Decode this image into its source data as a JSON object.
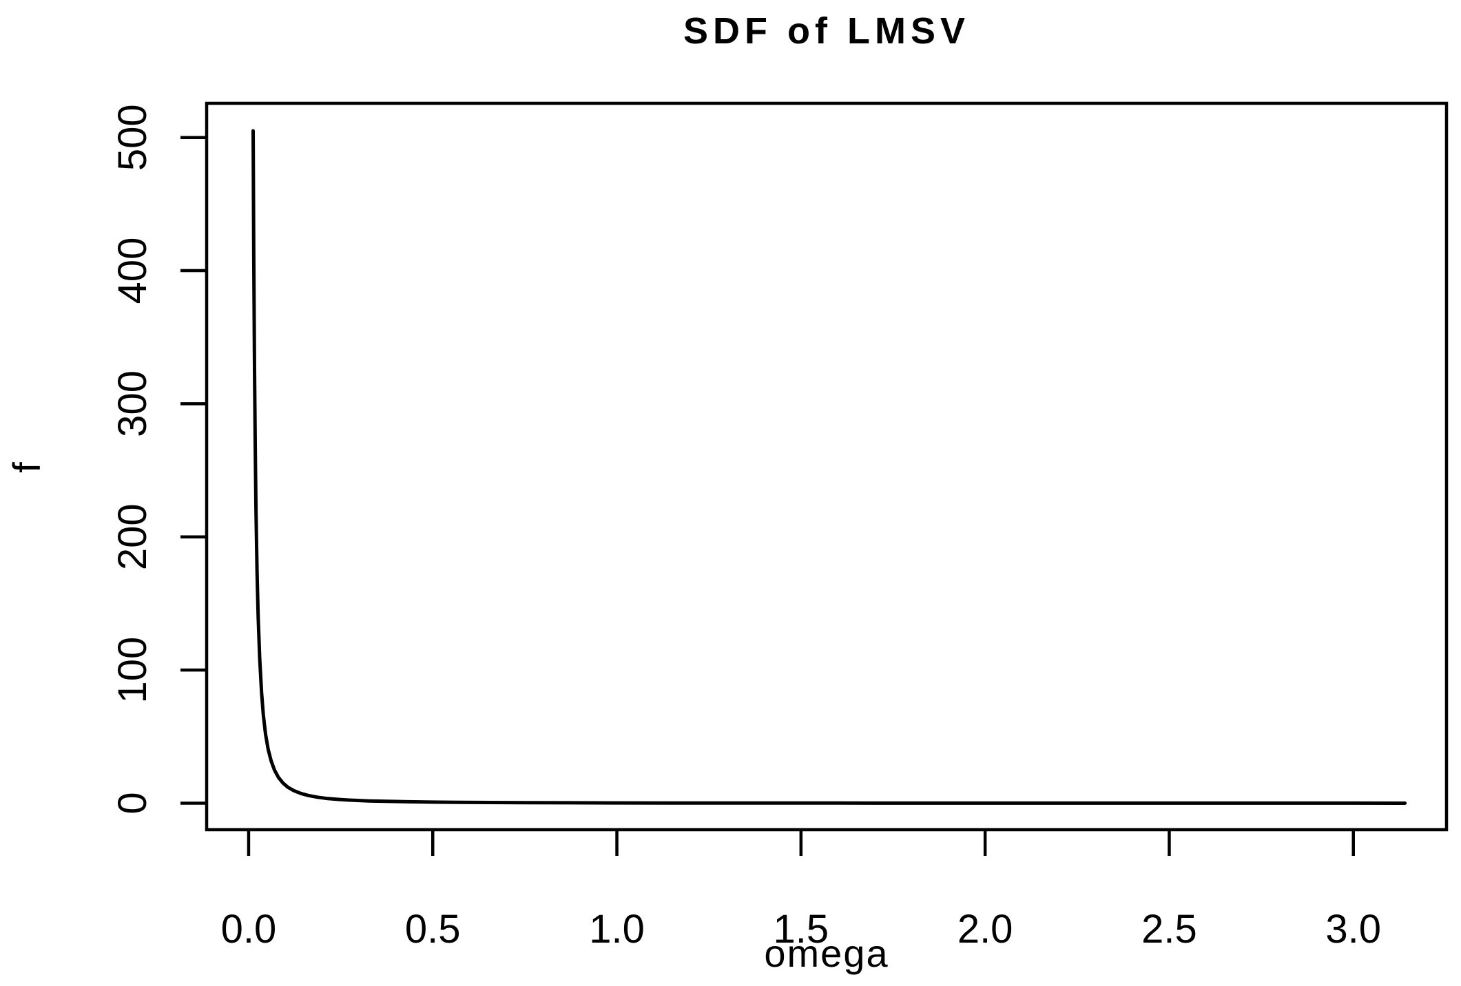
{
  "page": {
    "background_color": "#ffffff",
    "foreground_color": "#000000"
  },
  "chart_data": {
    "type": "line",
    "title": "SDF of LMSV",
    "xlabel": "omega",
    "ylabel": "f",
    "grid": false,
    "legend_position": "none",
    "line_color": "#000000",
    "xlim": [
      -0.114,
      3.253
    ],
    "ylim": [
      -19.9,
      525.7
    ],
    "x_ticks": [
      0.0,
      0.5,
      1.0,
      1.5,
      2.0,
      2.5,
      3.0
    ],
    "x_tick_labels": [
      "0.0",
      "0.5",
      "1.0",
      "1.5",
      "2.0",
      "2.5",
      "3.0"
    ],
    "y_ticks": [
      0,
      100,
      200,
      300,
      400,
      500
    ],
    "y_tick_labels": [
      "0",
      "100",
      "200",
      "300",
      "400",
      "500"
    ],
    "series": [
      {
        "name": "f",
        "x": [
          0.0122,
          0.014,
          0.016,
          0.018,
          0.02,
          0.023,
          0.026,
          0.03,
          0.035,
          0.04,
          0.046,
          0.053,
          0.061,
          0.07,
          0.081,
          0.093,
          0.107,
          0.123,
          0.141,
          0.162,
          0.187,
          0.215,
          0.247,
          0.284,
          0.326,
          0.375,
          0.431,
          0.496,
          0.57,
          0.655,
          0.753,
          0.87,
          1.0,
          1.15,
          1.35,
          1.6,
          1.9,
          2.2,
          2.6,
          3.0,
          3.14
        ],
        "y": [
          505,
          411,
          326,
          265,
          221,
          173,
          140,
          109,
          83.4,
          66.2,
          51.9,
          40.5,
          31.8,
          25.0,
          19.4,
          15.2,
          11.9,
          9.4,
          7.4,
          5.8,
          4.5,
          3.5,
          2.8,
          2.2,
          1.7,
          1.4,
          1.1,
          0.85,
          0.65,
          0.51,
          0.4,
          0.31,
          0.24,
          0.19,
          0.15,
          0.11,
          0.08,
          0.06,
          0.05,
          0.04,
          0.03
        ]
      }
    ],
    "peak_value": 505,
    "peak_omega": 0.0122
  }
}
